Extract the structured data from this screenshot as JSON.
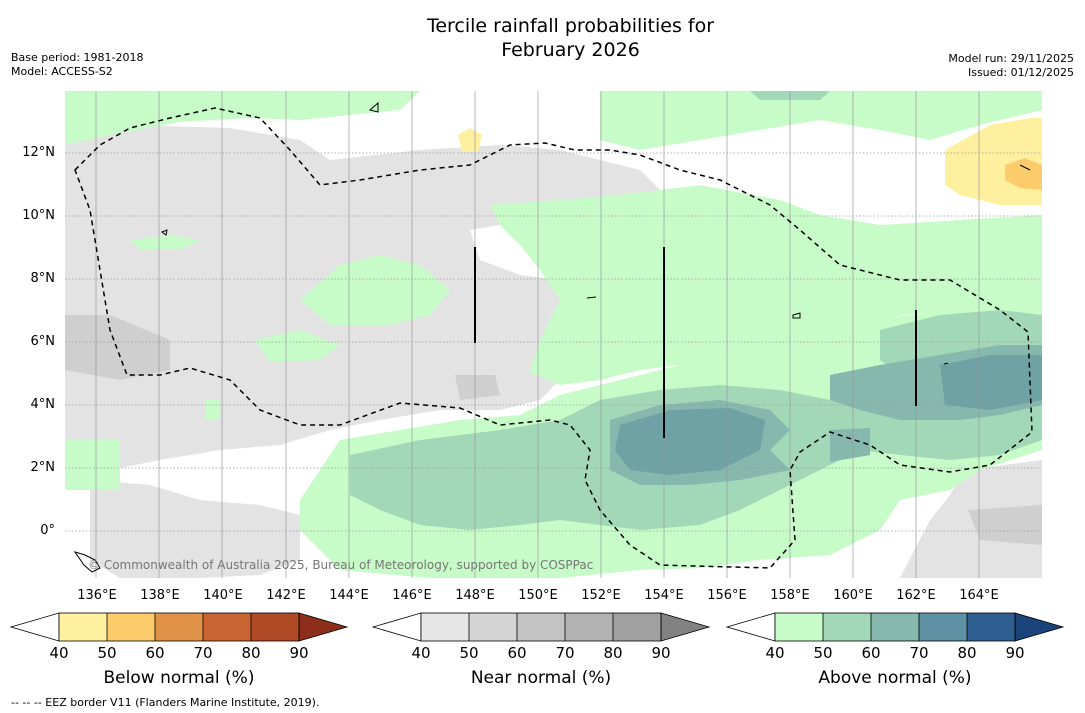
{
  "title_line1": "Tercile rainfall probabilities for",
  "title_line2": "February 2026",
  "base_period": "Base period: 1981-2018",
  "model": "Model: ACCESS-S2",
  "model_run": "Model run: 29/11/2025",
  "issued": "Issued: 01/12/2025",
  "y_ticks": [
    "12°N",
    "10°N",
    "8°N",
    "6°N",
    "4°N",
    "2°N",
    "0°"
  ],
  "x_ticks": [
    "136°E",
    "138°E",
    "140°E",
    "142°E",
    "144°E",
    "146°E",
    "148°E",
    "150°E",
    "152°E",
    "154°E",
    "156°E",
    "158°E",
    "160°E",
    "162°E",
    "164°E"
  ],
  "copyright": "© Commonwealth of Australia 2025, Bureau of Meteorology, supported by COSPPac",
  "colorbars": [
    {
      "label": "Below normal (%)",
      "ticks": [
        "40",
        "50",
        "60",
        "70",
        "80",
        "90"
      ],
      "colors": [
        "#ffffff",
        "#fff0a0",
        "#fdcc6a",
        "#e09348",
        "#cb6433",
        "#b04a26",
        "#8c2e1a"
      ]
    },
    {
      "label": "Near normal (%)",
      "ticks": [
        "40",
        "50",
        "60",
        "70",
        "80",
        "90"
      ],
      "colors": [
        "#ffffff",
        "#e6e6e6",
        "#d4d4d4",
        "#c4c4c4",
        "#b2b2b2",
        "#a1a1a1",
        "#828282"
      ]
    },
    {
      "label": "Above normal (%)",
      "ticks": [
        "40",
        "50",
        "60",
        "70",
        "80",
        "90"
      ],
      "colors": [
        "#ffffff",
        "#c7fcc8",
        "#a2d8b8",
        "#86b8ad",
        "#5d91a3",
        "#2f5f92",
        "#1a437a"
      ]
    }
  ],
  "footnote": "--  --  -- EEZ border V11 (Flanders Marine Institute, 2019)."
}
